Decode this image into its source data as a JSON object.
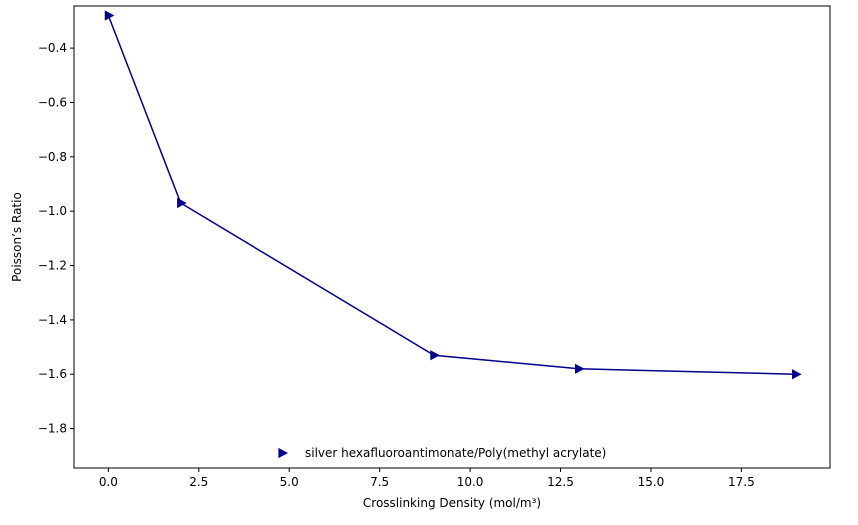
{
  "chart_data": {
    "type": "line",
    "title": "",
    "xlabel": "Crosslinking Density (mol/m³)",
    "ylabel": "Poisson’s Ratio",
    "xlim": [
      -0.95,
      19.95
    ],
    "ylim": [
      -1.945,
      -0.245
    ],
    "xticks": [
      0.0,
      2.5,
      5.0,
      7.5,
      10.0,
      12.5,
      15.0,
      17.5
    ],
    "xtick_labels": [
      "0.0",
      "2.5",
      "5.0",
      "7.5",
      "10.0",
      "12.5",
      "15.0",
      "17.5"
    ],
    "yticks": [
      -0.4,
      -0.6,
      -0.8,
      -1.0,
      -1.2,
      -1.4,
      -1.6,
      -1.8
    ],
    "ytick_labels": [
      "−0.4",
      "−0.6",
      "−0.8",
      "−1.0",
      "−1.2",
      "−1.4",
      "−1.6",
      "−1.8"
    ],
    "grid": false,
    "legend_position": "lower-center",
    "series": [
      {
        "name": "silver hexafluoroantimonate/Poly(methyl acrylate)",
        "color": "#00008b",
        "marker": "triangle-right",
        "x": [
          0,
          2,
          9,
          13,
          19
        ],
        "y": [
          -0.28,
          -0.97,
          -1.53,
          -1.58,
          -1.6
        ]
      }
    ]
  }
}
